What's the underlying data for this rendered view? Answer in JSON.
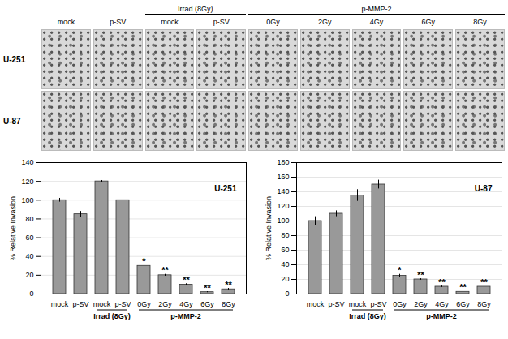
{
  "image_panel": {
    "rows": [
      "U-251",
      "U-87"
    ],
    "columns": [
      "mock",
      "p-SV",
      "mock",
      "p-SV",
      "0Gy",
      "2Gy",
      "4Gy",
      "6Gy",
      "8Gy"
    ],
    "groups": [
      {
        "label": "Irrad (8Gy)",
        "from": 2,
        "to": 3
      },
      {
        "label": "p-MMP-2",
        "from": 4,
        "to": 8
      }
    ]
  },
  "chart_data": [
    {
      "type": "bar",
      "annotation": "U-251",
      "y_label": "% Relative Invasion",
      "categories": [
        "mock",
        "p-SV",
        "mock",
        "p-SV",
        "0Gy",
        "2Gy",
        "4Gy",
        "6Gy",
        "8Gy"
      ],
      "groups": [
        {
          "label": "Irrad (8Gy)",
          "from": 2,
          "to": 3
        },
        {
          "label": "p-MMP-2",
          "from": 4,
          "to": 8
        }
      ],
      "values": [
        100,
        85,
        120,
        100,
        30,
        20,
        10,
        2,
        5
      ],
      "errors": [
        2,
        3,
        1,
        4,
        1,
        1,
        1,
        0.5,
        1
      ],
      "significance": [
        null,
        null,
        null,
        null,
        "*",
        "**",
        "**",
        "**",
        "**"
      ],
      "color": "#999999",
      "ylim": [
        0,
        140
      ],
      "yticks": [
        0,
        20,
        40,
        60,
        80,
        100,
        120,
        140
      ],
      "grid": true
    },
    {
      "type": "bar",
      "annotation": "U-87",
      "y_label": "% Relative Invasion",
      "categories": [
        "mock",
        "p-SV",
        "mock",
        "p-SV",
        "0Gy",
        "2Gy",
        "4Gy",
        "6Gy",
        "8Gy"
      ],
      "groups": [
        {
          "label": "Irrad (8Gy)",
          "from": 2,
          "to": 3
        },
        {
          "label": "p-MMP-2",
          "from": 4,
          "to": 8
        }
      ],
      "values": [
        100,
        110,
        135,
        150,
        25,
        20,
        10,
        3,
        10
      ],
      "errors": [
        6,
        4,
        8,
        6,
        2,
        1,
        1,
        1,
        1
      ],
      "significance": [
        null,
        null,
        null,
        null,
        "*",
        "**",
        "**",
        "**",
        "**"
      ],
      "color": "#999999",
      "ylim": [
        0,
        180
      ],
      "yticks": [
        0,
        20,
        40,
        60,
        80,
        100,
        120,
        140,
        160,
        180
      ],
      "grid": true
    }
  ]
}
